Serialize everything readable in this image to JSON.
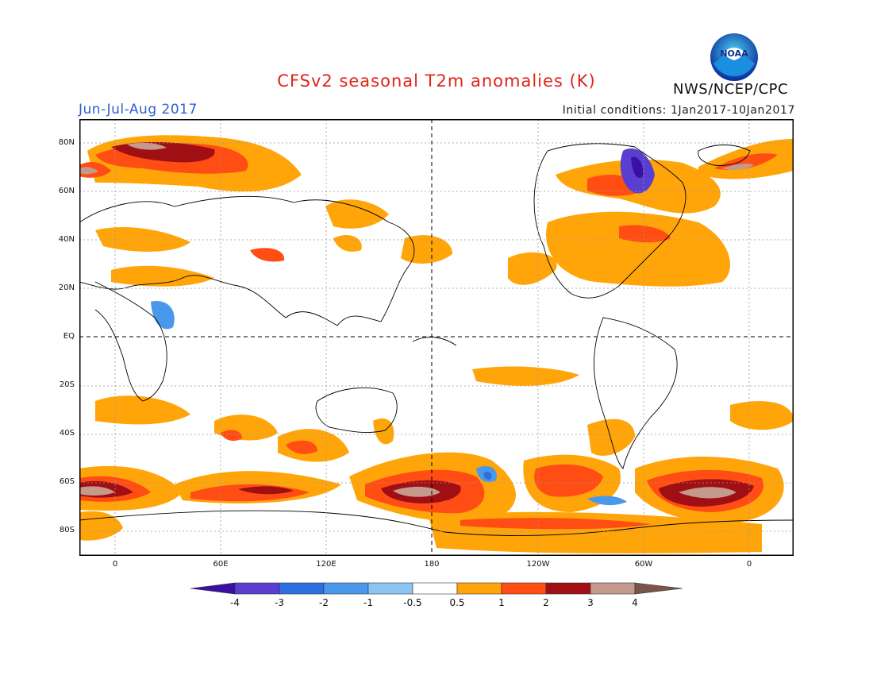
{
  "header": {
    "title": "CFSv2 seasonal T2m anomalies (K)",
    "season": "Jun-Jul-Aug 2017",
    "initial_conditions": "Initial conditions: 1Jan2017-10Jan2017",
    "agency": "NWS/NCEP/CPC",
    "logo_text": "NOAA",
    "logo_icon": "noaa-logo-icon"
  },
  "map": {
    "lat_labels": [
      "80N",
      "60N",
      "40N",
      "20N",
      "EQ",
      "20S",
      "40S",
      "60S",
      "80S"
    ],
    "lon_labels": [
      "0",
      "60E",
      "120E",
      "180",
      "120W",
      "60W",
      "0"
    ],
    "grid": "dotted",
    "reference_lines": [
      "EQ",
      "180"
    ]
  },
  "colorbar": {
    "labels": [
      "-4",
      "-3",
      "-2",
      "-1",
      "-0.5",
      "0.5",
      "1",
      "2",
      "3",
      "4"
    ],
    "colors": [
      "#3a0fa3",
      "#5a3ed0",
      "#2d6fe0",
      "#4a98ec",
      "#8cc4f4",
      "#ffffff",
      "#ffa50a",
      "#ff4d14",
      "#a00f14",
      "#c49a8c",
      "#7a5448"
    ]
  }
}
